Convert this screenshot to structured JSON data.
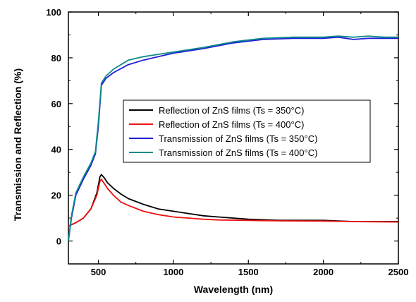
{
  "chart_data": {
    "type": "line",
    "title": "",
    "xlabel": "Wavelength (nm)",
    "ylabel": "Transmission and Reflection (%)",
    "xlim": [
      300,
      2500
    ],
    "ylim": [
      -10,
      100
    ],
    "xticks": [
      500,
      1000,
      1500,
      2000,
      2500
    ],
    "yticks": [
      0,
      20,
      40,
      60,
      80,
      100
    ],
    "grid": false,
    "legend_position": "center",
    "series": [
      {
        "name": "Reflection of ZnS films (Ts = 350°C)",
        "color": "#000000",
        "x": [
          300,
          350,
          400,
          450,
          490,
          510,
          520,
          540,
          560,
          600,
          650,
          700,
          800,
          900,
          1000,
          1100,
          1200,
          1300,
          1500,
          1700,
          2000,
          2200,
          2500
        ],
        "y": [
          6.5,
          8,
          10,
          14,
          21,
          28,
          29,
          27.5,
          25.5,
          23,
          20.5,
          18.5,
          16,
          14,
          13,
          12,
          11,
          10.5,
          9.5,
          9,
          9,
          8.5,
          8.5
        ]
      },
      {
        "name": "Reflection of ZnS films (Ts = 400°C)",
        "color": "#ee1111",
        "x": [
          300,
          350,
          400,
          450,
          490,
          510,
          520,
          540,
          560,
          600,
          650,
          700,
          800,
          900,
          1000,
          1100,
          1200,
          1300,
          1500,
          1700,
          2000,
          2200,
          2500
        ],
        "y": [
          6.5,
          8,
          10,
          14,
          20,
          26,
          27,
          25,
          23,
          20,
          17,
          15.5,
          13,
          11.5,
          10.5,
          10,
          9.5,
          9.2,
          9,
          8.8,
          8.7,
          8.5,
          8.3
        ]
      },
      {
        "name": "Transmission of ZnS films (Ts = 350°C)",
        "color": "#1f1fd6",
        "x": [
          300,
          320,
          350,
          400,
          450,
          480,
          500,
          520,
          550,
          600,
          700,
          800,
          900,
          1000,
          1200,
          1400,
          1600,
          1800,
          2000,
          2100,
          2200,
          2300,
          2400,
          2500
        ],
        "y": [
          0,
          10,
          20,
          27,
          33,
          38,
          50,
          68,
          71,
          73.5,
          77,
          79,
          80.5,
          82,
          84,
          86.5,
          88,
          88.5,
          88.5,
          89,
          88,
          88.5,
          88.5,
          88.5
        ]
      },
      {
        "name": "Transmission of ZnS films (Ts = 400°C)",
        "color": "#0f8a8a",
        "x": [
          300,
          320,
          350,
          400,
          450,
          480,
          500,
          520,
          550,
          600,
          700,
          800,
          900,
          1000,
          1200,
          1400,
          1600,
          1800,
          2000,
          2100,
          2200,
          2300,
          2400,
          2500
        ],
        "y": [
          0,
          11,
          21,
          28,
          34,
          39,
          52,
          69,
          72,
          75,
          79,
          80.5,
          81.5,
          82.5,
          84.5,
          87,
          88.5,
          89,
          89,
          89.5,
          89,
          89.5,
          89,
          89
        ]
      }
    ]
  }
}
